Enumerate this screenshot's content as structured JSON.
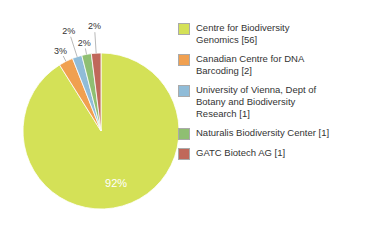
{
  "chart_data": {
    "type": "pie",
    "categories": [
      "Centre for Biodiversity\nGenomics [56]",
      "Canadian Centre for DNA\nBarcoding [2]",
      "University of Vienna, Dept of\nBotany and Biodiversity\nResearch [1]",
      "Naturalis Biodiversity Center [1]",
      "GATC Biotech AG [1]"
    ],
    "values": [
      92,
      3,
      2,
      2,
      2
    ],
    "value_labels": [
      "92%",
      "3%",
      "2%",
      "2%",
      "2%"
    ],
    "colors": [
      "#d4e157",
      "#f0a050",
      "#90bcd8",
      "#8fbf72",
      "#c0685a"
    ],
    "data_labels": true,
    "legend": "right"
  }
}
